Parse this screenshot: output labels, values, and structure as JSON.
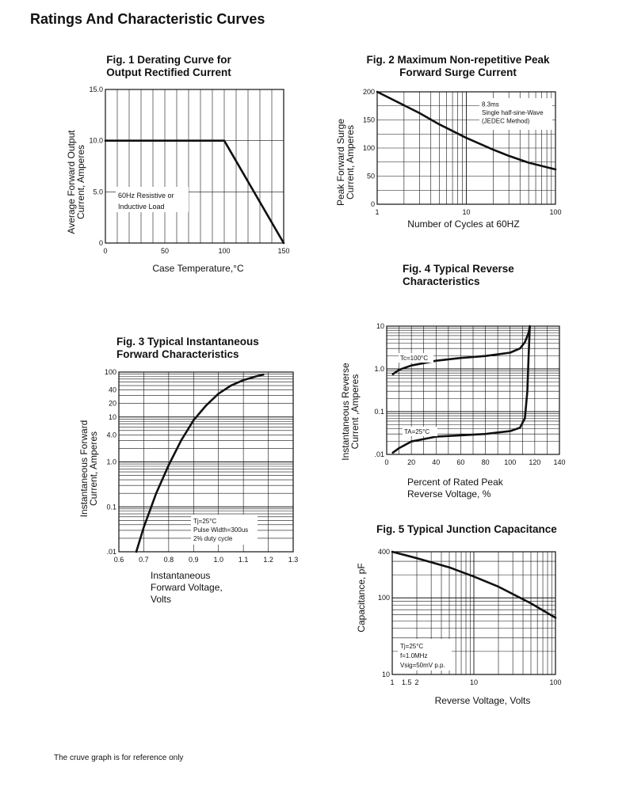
{
  "header": {
    "title": "Ratings And Characteristic Curves"
  },
  "footer": {
    "note": "The cruve graph is for reference only"
  },
  "chart_data": [
    {
      "id": "fig1",
      "type": "line",
      "title_lines": [
        "Fig. 1 Derating Curve for",
        "Output Rectified Current"
      ],
      "xlabel": "Case Temperature,°C",
      "ylabel_lines": [
        "Average Forward Output",
        "Current, Amperes"
      ],
      "xscale": "linear",
      "yscale": "linear",
      "xlim": [
        0,
        150
      ],
      "ylim": [
        0,
        15
      ],
      "xticks": [
        {
          "v": 0,
          "t": "0"
        },
        {
          "v": 50,
          "t": "50"
        },
        {
          "v": 100,
          "t": "100"
        },
        {
          "v": 150,
          "t": "150"
        }
      ],
      "yticks": [
        {
          "v": 0,
          "t": "0"
        },
        {
          "v": 5,
          "t": "5.0"
        },
        {
          "v": 10,
          "t": "10.0"
        },
        {
          "v": 15,
          "t": "15.0"
        }
      ],
      "series": [
        {
          "name": "derating",
          "x": [
            0,
            100,
            150
          ],
          "y": [
            10,
            10,
            0
          ]
        }
      ],
      "annotations": [
        {
          "lines": [
            "60Hz Resistive or",
            "Inductive Load"
          ]
        }
      ]
    },
    {
      "id": "fig2",
      "type": "line",
      "title_lines": [
        "Fig. 2 Maximum Non-repetitive Peak",
        "Forward Surge Current"
      ],
      "xlabel": "Number of Cycles at 60HZ",
      "ylabel_lines": [
        "Peak Forward Surge",
        "Current, Amperes"
      ],
      "xscale": "log",
      "yscale": "linear",
      "xlim": [
        1,
        100
      ],
      "ylim": [
        0,
        200
      ],
      "xticks": [
        {
          "v": 1,
          "t": "1"
        },
        {
          "v": 10,
          "t": "10"
        },
        {
          "v": 100,
          "t": "100"
        }
      ],
      "yticks": [
        {
          "v": 0,
          "t": "0"
        },
        {
          "v": 50,
          "t": "50"
        },
        {
          "v": 100,
          "t": "100"
        },
        {
          "v": 150,
          "t": "150"
        },
        {
          "v": 200,
          "t": "200"
        }
      ],
      "series": [
        {
          "name": "surge",
          "x": [
            1,
            2,
            3,
            5,
            10,
            20,
            30,
            50,
            100
          ],
          "y": [
            200,
            176,
            162,
            142,
            118,
            97,
            86,
            74,
            62
          ]
        }
      ],
      "annotations": [
        {
          "lines": [
            "8.3ms",
            "Single half-sine-Wave",
            "(JEDEC Method)"
          ]
        }
      ]
    },
    {
      "id": "fig3",
      "type": "line",
      "title_lines": [
        "Fig. 3 Typical Instantaneous",
        "Forward Characteristics"
      ],
      "xlabel_lines": [
        "Instantaneous",
        "Forward Voltage,",
        "Volts"
      ],
      "ylabel_lines": [
        "Instantaneous Forward",
        "Current, Amperes"
      ],
      "xscale": "linear",
      "yscale": "log",
      "xlim": [
        0.6,
        1.3
      ],
      "ylim": [
        0.01,
        100
      ],
      "xticks": [
        {
          "v": 0.6,
          "t": "0.6"
        },
        {
          "v": 0.7,
          "t": "0.7"
        },
        {
          "v": 0.8,
          "t": "0.8"
        },
        {
          "v": 0.9,
          "t": "0.9"
        },
        {
          "v": 1.0,
          "t": "1.0"
        },
        {
          "v": 1.1,
          "t": "1.1"
        },
        {
          "v": 1.2,
          "t": "1.2"
        },
        {
          "v": 1.3,
          "t": "1.3"
        }
      ],
      "yticks": [
        {
          "v": 0.01,
          "t": ".01"
        },
        {
          "v": 0.1,
          "t": "0.1"
        },
        {
          "v": 1,
          "t": "1.0"
        },
        {
          "v": 4,
          "t": "4.0"
        },
        {
          "v": 10,
          "t": "10"
        },
        {
          "v": 20,
          "t": "20"
        },
        {
          "v": 40,
          "t": "40"
        },
        {
          "v": 100,
          "t": "100"
        }
      ],
      "series": [
        {
          "name": "Tj=25C",
          "x": [
            0.67,
            0.7,
            0.75,
            0.8,
            0.85,
            0.9,
            0.95,
            1.0,
            1.05,
            1.1,
            1.15,
            1.18
          ],
          "y": [
            0.01,
            0.035,
            0.2,
            0.85,
            3.0,
            8.5,
            18,
            33,
            50,
            66,
            80,
            88
          ]
        }
      ],
      "annotations": [
        {
          "lines": [
            "Tj=25°C",
            "Pulse Width=300us",
            "2% duty cycle"
          ]
        }
      ]
    },
    {
      "id": "fig4",
      "type": "line",
      "title_lines": [
        "Fig. 4 Typical Reverse",
        "Characteristics"
      ],
      "xlabel_lines": [
        "Percent of Rated Peak",
        "Reverse Voltage, %"
      ],
      "ylabel_lines": [
        "Instantaneous Reverse",
        "Current ,Amperes"
      ],
      "xscale": "linear",
      "yscale": "log",
      "xlim": [
        0,
        140
      ],
      "ylim": [
        0.01,
        10
      ],
      "xticks": [
        {
          "v": 0,
          "t": "0"
        },
        {
          "v": 20,
          "t": "20"
        },
        {
          "v": 40,
          "t": "40"
        },
        {
          "v": 60,
          "t": "60"
        },
        {
          "v": 80,
          "t": "80"
        },
        {
          "v": 100,
          "t": "100"
        },
        {
          "v": 120,
          "t": "120"
        },
        {
          "v": 140,
          "t": "140"
        }
      ],
      "yticks": [
        {
          "v": 0.01,
          "t": ".01"
        },
        {
          "v": 0.1,
          "t": "0.1"
        },
        {
          "v": 1,
          "t": "1.0"
        },
        {
          "v": 10,
          "t": "10"
        }
      ],
      "series": [
        {
          "name": "Tc=100°C",
          "x": [
            5,
            10,
            20,
            40,
            60,
            80,
            100,
            108,
            112,
            115,
            116
          ],
          "y": [
            0.75,
            0.95,
            1.2,
            1.55,
            1.8,
            2.0,
            2.4,
            3.0,
            4.2,
            7.0,
            10
          ]
        },
        {
          "name": "TA=25°C",
          "x": [
            5,
            10,
            20,
            40,
            60,
            80,
            100,
            108,
            112,
            114,
            115,
            116
          ],
          "y": [
            0.011,
            0.014,
            0.02,
            0.026,
            0.028,
            0.03,
            0.035,
            0.042,
            0.07,
            0.3,
            2.0,
            10
          ]
        }
      ]
    },
    {
      "id": "fig5",
      "type": "line",
      "title_lines": [
        "Fig. 5 Typical Junction Capacitance"
      ],
      "xlabel": "Reverse Voltage, Volts",
      "ylabel_lines": [
        "Capacitance, pF"
      ],
      "xscale": "log",
      "yscale": "log",
      "xlim": [
        1,
        100
      ],
      "ylim": [
        10,
        400
      ],
      "xticks": [
        {
          "v": 1,
          "t": "1"
        },
        {
          "v": 1.5,
          "t": "1.5"
        },
        {
          "v": 2,
          "t": "2"
        },
        {
          "v": 10,
          "t": "10"
        },
        {
          "v": 100,
          "t": "100"
        }
      ],
      "yticks": [
        {
          "v": 10,
          "t": "10"
        },
        {
          "v": 100,
          "t": "100"
        },
        {
          "v": 400,
          "t": "400"
        }
      ],
      "series": [
        {
          "name": "Tj=25C",
          "x": [
            1,
            2,
            5,
            10,
            20,
            50,
            100
          ],
          "y": [
            400,
            330,
            250,
            190,
            140,
            85,
            55
          ]
        }
      ],
      "annotations": [
        {
          "lines": [
            "Tj=25°C",
            "f=1.0MHz",
            "Vsig=50mV p.p."
          ]
        }
      ]
    }
  ]
}
